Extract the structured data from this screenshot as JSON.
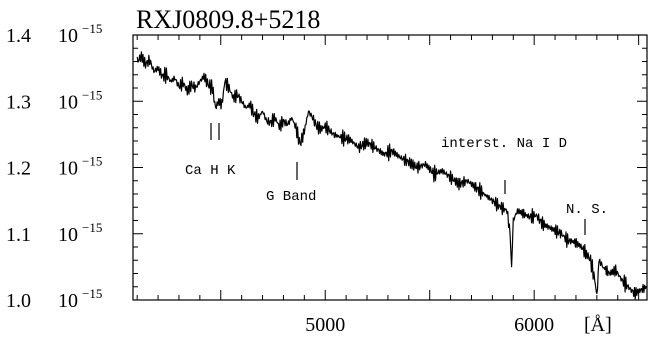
{
  "chart_data": {
    "type": "line",
    "title": "RXJ0809.8+5218",
    "xlabel": "[Å]",
    "ylabel": "",
    "xlim": [
      4080,
      6540
    ],
    "ylim": [
      1e-15,
      1.4e-15
    ],
    "x_ticks": [
      {
        "value": 5000,
        "label": "5000"
      },
      {
        "value": 6000,
        "label": "6000"
      }
    ],
    "y_ticks": [
      {
        "value": 1e-15,
        "mantissa": "1.0",
        "base": "10",
        "exp": "−15"
      },
      {
        "value": 1.1e-15,
        "mantissa": "1.1",
        "base": "10",
        "exp": "−15"
      },
      {
        "value": 1.2e-15,
        "mantissa": "1.2",
        "base": "10",
        "exp": "−15"
      },
      {
        "value": 1.3e-15,
        "mantissa": "1.3",
        "base": "10",
        "exp": "−15"
      },
      {
        "value": 1.4e-15,
        "mantissa": "1.4",
        "base": "10",
        "exp": "−15"
      }
    ],
    "grid": false,
    "annotations": [
      {
        "text": "Ca H K",
        "wavelengths": [
          4475,
          4505
        ]
      },
      {
        "text": "G Band",
        "wavelengths": [
          4880
        ]
      },
      {
        "text": "interst. Na I D",
        "wavelengths": [
          5890
        ]
      },
      {
        "text": "N. S.",
        "wavelengths": [
          6300
        ]
      }
    ],
    "series": [
      {
        "x": [
          4100,
          4120,
          4140,
          4160,
          4180,
          4200,
          4220,
          4240,
          4260,
          4280,
          4300,
          4320,
          4340,
          4360,
          4380,
          4400,
          4420,
          4440,
          4460,
          4475,
          4490,
          4505,
          4520,
          4540,
          4560,
          4580,
          4600,
          4620,
          4640,
          4660,
          4680,
          4700,
          4720,
          4740,
          4760,
          4780,
          4800,
          4820,
          4840,
          4860,
          4880,
          4900,
          4920,
          4940,
          4960,
          4980,
          5000,
          5040,
          5080,
          5120,
          5160,
          5200,
          5240,
          5280,
          5320,
          5360,
          5400,
          5440,
          5480,
          5520,
          5560,
          5600,
          5640,
          5680,
          5720,
          5760,
          5800,
          5840,
          5870,
          5885,
          5892,
          5900,
          5920,
          5950,
          5980,
          6010,
          6040,
          6070,
          6100,
          6130,
          6160,
          6190,
          6220,
          6250,
          6270,
          6290,
          6300,
          6310,
          6330,
          6360,
          6390,
          6420,
          6450,
          6480,
          6510,
          6540
        ],
        "y": [
          1.36e-15,
          1.368e-15,
          1.356e-15,
          1.362e-15,
          1.345e-15,
          1.35e-15,
          1.338e-15,
          1.34e-15,
          1.33e-15,
          1.335e-15,
          1.322e-15,
          1.328e-15,
          1.315e-15,
          1.325e-15,
          1.32e-15,
          1.33e-15,
          1.338e-15,
          1.325e-15,
          1.32e-15,
          1.29e-15,
          1.3e-15,
          1.295e-15,
          1.33e-15,
          1.32e-15,
          1.305e-15,
          1.31e-15,
          1.3e-15,
          1.29e-15,
          1.295e-15,
          1.28e-15,
          1.275e-15,
          1.285e-15,
          1.27e-15,
          1.268e-15,
          1.275e-15,
          1.262e-15,
          1.27e-15,
          1.265e-15,
          1.275e-15,
          1.26e-15,
          1.235e-15,
          1.255e-15,
          1.285e-15,
          1.275e-15,
          1.262e-15,
          1.258e-15,
          1.262e-15,
          1.25e-15,
          1.245e-15,
          1.242e-15,
          1.23e-15,
          1.238e-15,
          1.23e-15,
          1.22e-15,
          1.225e-15,
          1.215e-15,
          1.208e-15,
          1.2e-15,
          1.205e-15,
          1.19e-15,
          1.195e-15,
          1.185e-15,
          1.175e-15,
          1.18e-15,
          1.17e-15,
          1.16e-15,
          1.15e-15,
          1.14e-15,
          1.135e-15,
          1.1e-15,
          1.05e-15,
          1.12e-15,
          1.135e-15,
          1.13e-15,
          1.125e-15,
          1.128e-15,
          1.115e-15,
          1.11e-15,
          1.105e-15,
          1.1e-15,
          1.09e-15,
          1.088e-15,
          1.082e-15,
          1.07e-15,
          1.06e-15,
          1.03e-15,
          1e-15,
          1.06e-15,
          1.05e-15,
          1.04e-15,
          1.045e-15,
          1.03e-15,
          1.02e-15,
          1.01e-15,
          1.015e-15,
          1.02e-15
        ]
      }
    ]
  }
}
